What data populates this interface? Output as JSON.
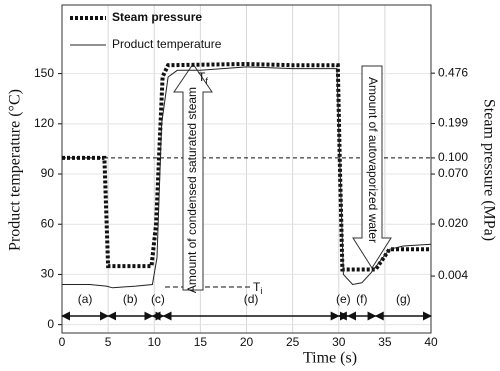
{
  "chart_data": {
    "type": "line",
    "xlabel": "Time  (s)",
    "ylabel": "Product temperature (°C)",
    "y2label": "Steam pressure (MPa)",
    "xlim": [
      0,
      40
    ],
    "xticks": [
      0,
      5,
      10,
      15,
      20,
      25,
      30,
      35,
      40
    ],
    "ylim": [
      -5,
      191
    ],
    "yticks": [
      0,
      30,
      60,
      90,
      120,
      150
    ],
    "y2scale": "saturation",
    "y2ticks": [
      {
        "value": 0.004,
        "label": "0.004"
      },
      {
        "value": 0.02,
        "label": "0.020"
      },
      {
        "value": 0.07,
        "label": "0.070"
      },
      {
        "value": 0.1,
        "label": "0.100"
      },
      {
        "value": 0.199,
        "label": "0.199"
      },
      {
        "value": 0.476,
        "label": "0.476"
      }
    ],
    "y2_reference": 0.1,
    "grid": true,
    "legend": "upper left",
    "series": [
      {
        "name": "Steam pressure",
        "axis": "y2",
        "color": "#111111",
        "style": "dotted",
        "x": [
          0,
          4.6,
          5.0,
          9.7,
          10.2,
          10.9,
          11.5,
          20,
          25,
          29.9,
          30.1,
          30.4,
          34,
          35.5,
          40
        ],
        "values": [
          0.1,
          0.1,
          0.0056,
          0.0056,
          0.02,
          0.45,
          0.54,
          0.55,
          0.54,
          0.54,
          0.1,
          0.005,
          0.005,
          0.0096,
          0.0096
        ]
      },
      {
        "name": "Product temperature",
        "color": "#222222",
        "style": "solid",
        "x": [
          0,
          3,
          4.8,
          5.5,
          8,
          9.8,
          10.3,
          10.8,
          11.5,
          12.5,
          15,
          20,
          25,
          29.8,
          30.1,
          30.5,
          31.5,
          32.5,
          33.5,
          34.5,
          35.5,
          37,
          40
        ],
        "values": [
          24,
          24,
          23,
          22,
          23,
          24,
          40,
          120,
          148,
          152,
          152,
          154,
          153,
          153,
          100,
          30,
          24,
          25,
          31,
          38,
          45,
          47,
          48
        ]
      }
    ],
    "phases": [
      {
        "label": "(a)",
        "start": 0,
        "end": 5
      },
      {
        "label": "(b)",
        "start": 5,
        "end": 9.8
      },
      {
        "label": "(c)",
        "start": 9.8,
        "end": 11
      },
      {
        "label": "(d)",
        "start": 11,
        "end": 30
      },
      {
        "label": "(e)",
        "start": 30,
        "end": 31
      },
      {
        "label": "(f)",
        "start": 31,
        "end": 34
      },
      {
        "label": "(g)",
        "start": 34,
        "end": 40
      }
    ],
    "annotations": {
      "condensed": "Amount of condensed saturated steam",
      "autovaporized": "Amount of  autovaporized water",
      "tf": {
        "text": "T",
        "sub": "f"
      },
      "ti": {
        "text": "T",
        "sub": "i"
      }
    }
  }
}
